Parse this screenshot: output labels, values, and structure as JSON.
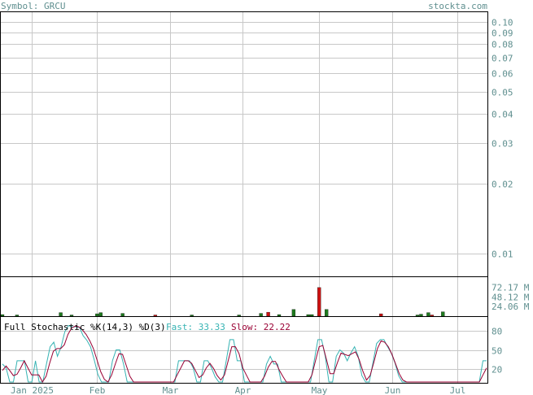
{
  "header": {
    "symbol": "Symbol: GRCU",
    "site": "stockta.com"
  },
  "colors": {
    "grid": "#c8c8c8",
    "frame": "#000000",
    "text": "#5f8f8f",
    "up": "#1f7a1f",
    "down": "#cc1111",
    "fast": "#36b3b3",
    "slow": "#990033"
  },
  "chart_data": [
    {
      "type": "line",
      "name": "price",
      "scale": "log",
      "ylim": [
        0.008,
        0.11
      ],
      "yticks": [
        "0.10",
        "0.09",
        "0.08",
        "0.07",
        "0.06",
        "0.05",
        "0.04",
        "0.03",
        "0.02",
        "0.01"
      ],
      "ytick_values": [
        0.1,
        0.09,
        0.08,
        0.07,
        0.06,
        0.05,
        0.04,
        0.03,
        0.02,
        0.01
      ],
      "x_months": [
        "Jan 2025",
        "Feb",
        "Mar",
        "Apr",
        "May",
        "Jun",
        "Jul"
      ],
      "x_month_index": [
        8,
        26,
        46,
        66,
        87,
        107,
        125
      ],
      "x_points": 134,
      "series": []
    },
    {
      "type": "bar",
      "name": "volume",
      "ylabel_ticks": [
        "72.17 M",
        "48.12 M",
        "24.06 M"
      ],
      "ytick_values": [
        72.17,
        48.12,
        24.06
      ],
      "ylim": [
        0,
        96
      ],
      "bars": [
        {
          "i": 0,
          "v": 4,
          "c": "up"
        },
        {
          "i": 4,
          "v": 3,
          "c": "up"
        },
        {
          "i": 16,
          "v": 9,
          "c": "up"
        },
        {
          "i": 19,
          "v": 3,
          "c": "up"
        },
        {
          "i": 26,
          "v": 6,
          "c": "up"
        },
        {
          "i": 27,
          "v": 9,
          "c": "up"
        },
        {
          "i": 33,
          "v": 7,
          "c": "up"
        },
        {
          "i": 42,
          "v": 3,
          "c": "down"
        },
        {
          "i": 52,
          "v": 3,
          "c": "up"
        },
        {
          "i": 65,
          "v": 3,
          "c": "up"
        },
        {
          "i": 71,
          "v": 7,
          "c": "up"
        },
        {
          "i": 73,
          "v": 10,
          "c": "down"
        },
        {
          "i": 76,
          "v": 4,
          "c": "up"
        },
        {
          "i": 80,
          "v": 17,
          "c": "up"
        },
        {
          "i": 84,
          "v": 4,
          "c": "up"
        },
        {
          "i": 85,
          "v": 4,
          "c": "up"
        },
        {
          "i": 87,
          "v": 72,
          "c": "down"
        },
        {
          "i": 89,
          "v": 17,
          "c": "up"
        },
        {
          "i": 104,
          "v": 6,
          "c": "down"
        },
        {
          "i": 114,
          "v": 3,
          "c": "up"
        },
        {
          "i": 115,
          "v": 5,
          "c": "up"
        },
        {
          "i": 117,
          "v": 9,
          "c": "up"
        },
        {
          "i": 118,
          "v": 3,
          "c": "down"
        },
        {
          "i": 121,
          "v": 11,
          "c": "up"
        }
      ]
    },
    {
      "type": "line",
      "name": "stochastic",
      "title": "Full Stochastic %K(14,3) %D(3)",
      "fast_label": "Fast: 33.33",
      "slow_label": "Slow: 22.22",
      "ylim": [
        0,
        100
      ],
      "yticks": [
        "80",
        "50",
        "20"
      ],
      "ytick_values": [
        80,
        50,
        20
      ],
      "series": [
        {
          "name": "Fast",
          "values": [
            28,
            22,
            0,
            0,
            33,
            33,
            33,
            0,
            0,
            33,
            0,
            0,
            28,
            55,
            62,
            40,
            55,
            78,
            88,
            86,
            86,
            85,
            72,
            65,
            55,
            35,
            12,
            0,
            0,
            0,
            33,
            50,
            50,
            28,
            0,
            0,
            0,
            0,
            0,
            0,
            0,
            0,
            0,
            0,
            0,
            0,
            0,
            0,
            33,
            33,
            33,
            33,
            22,
            0,
            0,
            33,
            33,
            22,
            8,
            0,
            0,
            33,
            66,
            66,
            33,
            33,
            0,
            0,
            0,
            0,
            0,
            0,
            28,
            40,
            28,
            28,
            0,
            0,
            0,
            0,
            0,
            0,
            0,
            0,
            0,
            33,
            66,
            66,
            40,
            0,
            0,
            40,
            50,
            45,
            33,
            45,
            55,
            40,
            10,
            0,
            0,
            30,
            60,
            66,
            66,
            55,
            45,
            30,
            10,
            0,
            0,
            0,
            0,
            0,
            0,
            0,
            0,
            0,
            0,
            0,
            0,
            0,
            0,
            0,
            0,
            0,
            0,
            0,
            0,
            0,
            0,
            33,
            33
          ]
        },
        {
          "name": "Slow",
          "values": [
            18,
            25,
            18,
            10,
            12,
            22,
            33,
            22,
            11,
            11,
            11,
            0,
            9,
            30,
            48,
            52,
            52,
            58,
            74,
            84,
            87,
            86,
            81,
            74,
            64,
            52,
            34,
            16,
            4,
            0,
            11,
            28,
            44,
            43,
            26,
            9,
            0,
            0,
            0,
            0,
            0,
            0,
            0,
            0,
            0,
            0,
            0,
            0,
            11,
            22,
            33,
            33,
            29,
            18,
            7,
            11,
            22,
            29,
            21,
            10,
            3,
            11,
            33,
            55,
            55,
            44,
            22,
            11,
            0,
            0,
            0,
            0,
            9,
            23,
            32,
            32,
            19,
            9,
            0,
            0,
            0,
            0,
            0,
            0,
            0,
            11,
            33,
            55,
            57,
            35,
            13,
            13,
            30,
            45,
            43,
            41,
            44,
            47,
            35,
            17,
            3,
            10,
            30,
            52,
            64,
            62,
            55,
            43,
            28,
            13,
            3,
            0,
            0,
            0,
            0,
            0,
            0,
            0,
            0,
            0,
            0,
            0,
            0,
            0,
            0,
            0,
            0,
            0,
            0,
            0,
            0,
            0,
            11,
            22
          ]
        }
      ]
    }
  ]
}
